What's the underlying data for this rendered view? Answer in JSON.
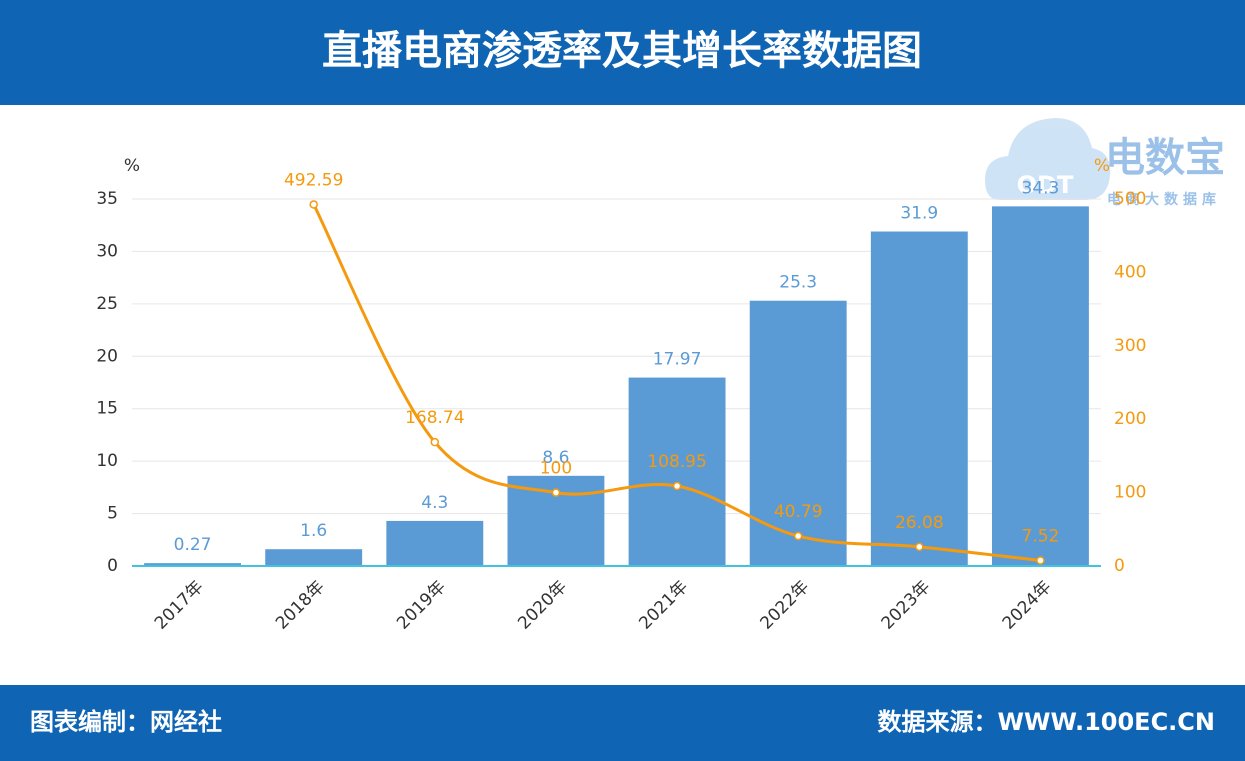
{
  "header": {
    "title": "直播电商渗透率及其增长率数据图"
  },
  "watermark": {
    "mark": "ODT",
    "name": "电数宝",
    "tagline": "电商大数据库"
  },
  "chart_data": {
    "type": "bar",
    "categories": [
      "2017年",
      "2018年",
      "2019年",
      "2020年",
      "2021年",
      "2022年",
      "2023年",
      "2024年"
    ],
    "series": [
      {
        "type": "bar",
        "color": "#5b9bd5",
        "values": [
          0.27,
          1.6,
          4.3,
          8.6,
          17.97,
          25.3,
          31.9,
          34.3
        ]
      },
      {
        "type": "line",
        "color": "#f59a0f",
        "axis": "y2",
        "values": [
          null,
          492.59,
          168.74,
          100,
          108.95,
          40.79,
          26.08,
          7.52
        ]
      }
    ],
    "y_unit": "%",
    "y2_unit": "%",
    "ylim": [
      0,
      35
    ],
    "yticks": [
      0,
      5,
      10,
      15,
      20,
      25,
      30,
      35
    ],
    "y2lim": [
      0,
      500
    ],
    "y2ticks": [
      0,
      100,
      200,
      300,
      400,
      500
    ],
    "grid": true
  },
  "footer": {
    "left": "图表编制：网经社",
    "right": "数据来源：WWW.100EC.CN"
  }
}
